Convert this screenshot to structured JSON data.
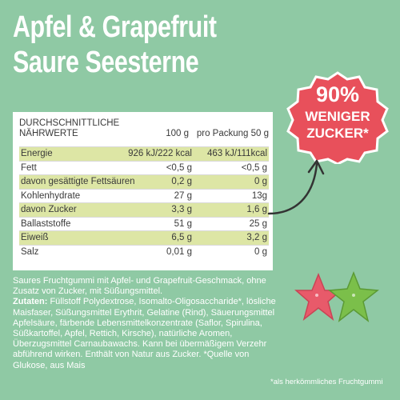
{
  "title": {
    "line1": "Apfel & Grapefruit",
    "line2": "Saure Seesterne"
  },
  "nutrition": {
    "header_label_line1": "DURCHSCHNITTLICHE",
    "header_label_line2": "NÄHRWERTE",
    "header_100g": "100 g",
    "header_pack": "pro Packung 50 g",
    "rows": [
      {
        "label": "Energie",
        "v100": "926 kJ/222 kcal",
        "vpack": "463 kJ/111kcal",
        "shaded": true
      },
      {
        "label": "Fett",
        "v100": "<0,5 g",
        "vpack": "<0,5 g",
        "shaded": false
      },
      {
        "label": "davon gesättigte Fettsäuren",
        "v100": "0,2 g",
        "vpack": "0 g",
        "shaded": true
      },
      {
        "label": "Kohlenhydrate",
        "v100": "27 g",
        "vpack": "13g",
        "shaded": false
      },
      {
        "label": "davon Zucker",
        "v100": "3,3 g",
        "vpack": "1,6 g",
        "shaded": true
      },
      {
        "label": "Ballaststoffe",
        "v100": "51 g",
        "vpack": "25 g",
        "shaded": false
      },
      {
        "label": "Eiweiß",
        "v100": "6,5 g",
        "vpack": "3,2 g",
        "shaded": true
      },
      {
        "label": "Salz",
        "v100": "0,01 g",
        "vpack": "0 g",
        "shaded": false
      }
    ]
  },
  "badge": {
    "percent": "90%",
    "line2": "WENIGER",
    "line3": "ZUCKER*",
    "color": "#e8505b"
  },
  "description": {
    "intro": "Saures Fruchtgummi mit Apfel- und Grapefruit-Geschmack, ohne Zusatz von Zucker, mit Süßungsmittel.",
    "ingredients_label": "Zutaten:",
    "ingredients": "Füllstoff Polydextrose, Isomalto-Oligosaccharide*, lösliche Maisfaser, Süßungsmittel Erythrit, Gelatine (Rind), Säuerungsmittel Apfelsäure, färbende Lebensmittelkonzentrate (Saflor, Spirulina, Süßkartoffel, Apfel, Rettich, Kirsche), natürliche Aromen, Überzugsmittel Carnaubawachs. Kann bei übermäßigem Verzehr abführend wirken. Enthält von Natur aus Zucker. *Quelle von Glukose, aus Mais"
  },
  "footnote": "*als herkömmliches Fruchtgummi",
  "icons": {
    "badge": "starburst-badge",
    "arrow": "curved-arrow-icon",
    "product": "starfish-gummies-image"
  },
  "colors": {
    "background": "#8fc9a4",
    "row_highlight": "#dde6a5",
    "badge": "#e8505b"
  }
}
